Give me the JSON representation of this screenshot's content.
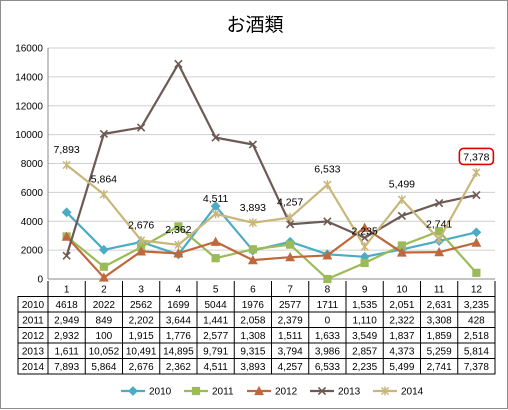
{
  "chart_data": {
    "type": "line",
    "title": "お酒類",
    "xlabel": "",
    "ylabel": "",
    "ylim": [
      0,
      16000
    ],
    "yticks": [
      0,
      2000,
      4000,
      6000,
      8000,
      10000,
      12000,
      14000,
      16000
    ],
    "grid": true,
    "legend_position": "bottom",
    "categories": [
      "1",
      "2",
      "3",
      "4",
      "5",
      "6",
      "7",
      "8",
      "9",
      "10",
      "11",
      "12"
    ],
    "series": [
      {
        "name": "2010",
        "color": "#4bacc6",
        "marker": "diamond",
        "values": [
          4618,
          2022,
          2562,
          1699,
          5044,
          1976,
          2577,
          1711,
          1535,
          2051,
          2631,
          3235
        ],
        "table": [
          "4618",
          "2022",
          "2562",
          "1699",
          "5044",
          "1976",
          "2577",
          "1711",
          "1,535",
          "2,051",
          "2,631",
          "3,235"
        ]
      },
      {
        "name": "2011",
        "color": "#9bbb59",
        "marker": "square",
        "values": [
          2949,
          849,
          2202,
          3644,
          1441,
          2058,
          2379,
          0,
          1110,
          2322,
          3308,
          428
        ],
        "table": [
          "2,949",
          "849",
          "2,202",
          "3,644",
          "1,441",
          "2,058",
          "2,379",
          "0",
          "1,110",
          "2,322",
          "3,308",
          "428"
        ]
      },
      {
        "name": "2012",
        "color": "#c0683c",
        "marker": "triangle",
        "values": [
          2932,
          100,
          1915,
          1776,
          2577,
          1308,
          1511,
          1633,
          3549,
          1837,
          1859,
          2518
        ],
        "table": [
          "2,932",
          "100",
          "1,915",
          "1,776",
          "2,577",
          "1,308",
          "1,511",
          "1,633",
          "3,549",
          "1,837",
          "1,859",
          "2,518"
        ]
      },
      {
        "name": "2013",
        "color": "#6d5a54",
        "marker": "x",
        "values": [
          1611,
          10052,
          10491,
          14895,
          9791,
          9315,
          3794,
          3986,
          2857,
          4373,
          5259,
          5814
        ],
        "table": [
          "1,611",
          "10,052",
          "10,491",
          "14,895",
          "9,791",
          "9,315",
          "3,794",
          "3,986",
          "2,857",
          "4,373",
          "5,259",
          "5,814"
        ]
      },
      {
        "name": "2014",
        "color": "#c9b67a",
        "marker": "star",
        "values": [
          7893,
          5864,
          2676,
          2362,
          4511,
          3893,
          4257,
          6533,
          2235,
          5499,
          2741,
          7378
        ],
        "table": [
          "7,893",
          "5,864",
          "2,676",
          "2,362",
          "4,511",
          "3,893",
          "4,257",
          "6,533",
          "2,235",
          "5,499",
          "2,741",
          "7,378"
        ]
      }
    ],
    "annotations": [
      {
        "series": "2014",
        "index": 0,
        "text": "7,893"
      },
      {
        "series": "2014",
        "index": 1,
        "text": "5,864"
      },
      {
        "series": "2014",
        "index": 2,
        "text": "2,676"
      },
      {
        "series": "2014",
        "index": 3,
        "text": "2,362"
      },
      {
        "series": "2014",
        "index": 4,
        "text": "4,511"
      },
      {
        "series": "2014",
        "index": 5,
        "text": "3,893"
      },
      {
        "series": "2014",
        "index": 6,
        "text": "4,257"
      },
      {
        "series": "2014",
        "index": 7,
        "text": "6,533"
      },
      {
        "series": "2014",
        "index": 8,
        "text": "2,235"
      },
      {
        "series": "2014",
        "index": 9,
        "text": "5,499"
      },
      {
        "series": "2014",
        "index": 10,
        "text": "2,741"
      },
      {
        "series": "2014",
        "index": 11,
        "text": "7,378",
        "highlight": true,
        "highlight_color": "#e00000"
      }
    ]
  }
}
